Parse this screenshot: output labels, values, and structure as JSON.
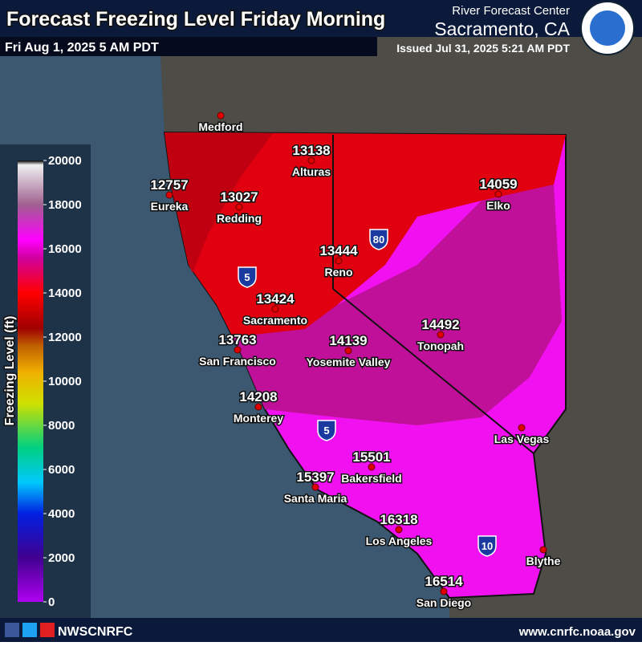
{
  "header": {
    "title": "Forecast Freezing Level Friday Morning",
    "valid": "Fri Aug 1, 2025 5 AM PDT",
    "agency": "River Forecast Center",
    "office": "Sacramento, CA",
    "issued": "Issued Jul 31, 2025 5:21 AM PDT"
  },
  "legend": {
    "label": "Freezing Level (ft)",
    "lim": [
      0,
      20000
    ],
    "ticks": [
      0,
      2000,
      4000,
      6000,
      8000,
      10000,
      12000,
      14000,
      16000,
      18000,
      20000
    ]
  },
  "cities": [
    {
      "name": "Medford"
    },
    {
      "name": "Alturas",
      "value": 13138
    },
    {
      "name": "Eureka",
      "value": 12757
    },
    {
      "name": "Redding",
      "value": 13027
    },
    {
      "name": "Elko",
      "value": 14059
    },
    {
      "name": "Reno",
      "value": 13444
    },
    {
      "name": "Sacramento",
      "value": 13424
    },
    {
      "name": "Tonopah",
      "value": 14492
    },
    {
      "name": "San Francisco",
      "value": 13763
    },
    {
      "name": "Yosemite Valley",
      "value": 14139
    },
    {
      "name": "Monterey",
      "value": 14208
    },
    {
      "name": "Las Vegas"
    },
    {
      "name": "Bakersfield",
      "value": 15501
    },
    {
      "name": "Santa Maria",
      "value": 15397
    },
    {
      "name": "Los Angeles",
      "value": 16318
    },
    {
      "name": "Blythe"
    },
    {
      "name": "San Diego",
      "value": 16514
    }
  ],
  "shields": [
    "5",
    "80",
    "5",
    "10"
  ],
  "footer": {
    "handle": "NWSCNRFC",
    "url": "www.cnrfc.noaa.gov"
  }
}
